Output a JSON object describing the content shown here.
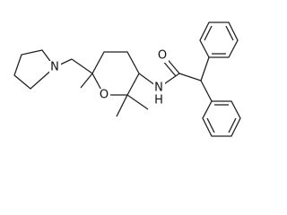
{
  "atoms": [
    {
      "label": "N"
    },
    {
      "label": "O"
    },
    {
      "label": "N"
    },
    {
      "label": "H"
    },
    {
      "label": "O"
    }
  ]
}
